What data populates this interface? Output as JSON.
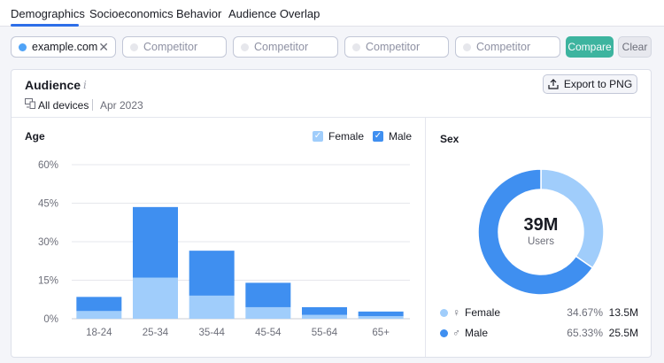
{
  "tabs": [
    {
      "label": "Demographics",
      "active": true
    },
    {
      "label": "Socioeconomics",
      "active": false
    },
    {
      "label": "Behavior",
      "active": false
    },
    {
      "label": "Audience Overlap",
      "active": false
    }
  ],
  "domains": {
    "primary": {
      "value": "example.com",
      "dot_color": "#4fa3f7"
    },
    "competitors": [
      "Competitor",
      "Competitor",
      "Competitor",
      "Competitor"
    ],
    "compare_label": "Compare",
    "clear_label": "Clear"
  },
  "audience": {
    "title": "Audience",
    "info": "i",
    "devices": "All devices",
    "period": "Apr 2023",
    "export_label": "Export to PNG"
  },
  "age": {
    "title": "Age",
    "legend": [
      {
        "label": "Female",
        "color": "#a0cdfb",
        "checked": true
      },
      {
        "label": "Male",
        "color": "#3f8ff0",
        "checked": true
      }
    ]
  },
  "chart_data": {
    "type": "bar",
    "stacked": true,
    "categories": [
      "18-24",
      "25-34",
      "35-44",
      "45-54",
      "55-64",
      "65+"
    ],
    "series": [
      {
        "name": "Female",
        "color": "#a0cdfb",
        "values": [
          3,
          16,
          9,
          4.5,
          1.5,
          1
        ]
      },
      {
        "name": "Male",
        "color": "#3f8ff0",
        "values": [
          5.5,
          27.5,
          17.5,
          9.5,
          3,
          1.8
        ]
      }
    ],
    "y_ticks": [
      "0%",
      "15%",
      "30%",
      "45%",
      "60%"
    ],
    "ylim": [
      0,
      60
    ],
    "grid": true
  },
  "sex": {
    "title": "Sex",
    "total": "39M",
    "total_label": "Users",
    "rows": [
      {
        "name": "Female",
        "symbol": "♀",
        "pct": "34.67%",
        "value": "13.5M",
        "share": 34.67,
        "color": "#a0cdfb"
      },
      {
        "name": "Male",
        "symbol": "♂",
        "pct": "65.33%",
        "value": "25.5M",
        "share": 65.33,
        "color": "#3f8ff0"
      }
    ]
  }
}
